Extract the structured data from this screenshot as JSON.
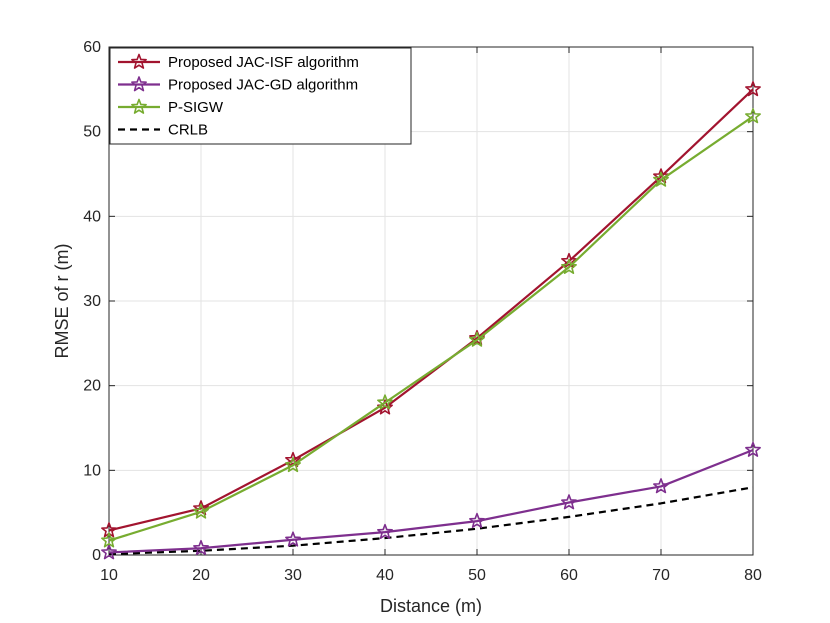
{
  "chart_data": {
    "type": "line",
    "xlabel": "Distance (m)",
    "ylabel": "RMSE of r (m)",
    "xlim": [
      10,
      80
    ],
    "ylim": [
      0,
      60
    ],
    "xticks": [
      "10",
      "20",
      "30",
      "40",
      "50",
      "60",
      "70",
      "80"
    ],
    "yticks": [
      "0",
      "10",
      "20",
      "30",
      "40",
      "50",
      "60"
    ],
    "grid": true,
    "legend_position": "top-left",
    "x": [
      10,
      20,
      30,
      40,
      50,
      60,
      70,
      80
    ],
    "series": [
      {
        "name": "Proposed JAC-ISF algorithm",
        "values": [
          2.9,
          5.5,
          11.2,
          17.4,
          25.6,
          34.7,
          44.7,
          55.0
        ],
        "color": "#A2142F",
        "style": "solid",
        "marker": "star-icon"
      },
      {
        "name": "Proposed JAC-GD algorithm",
        "values": [
          0.3,
          0.8,
          1.8,
          2.7,
          4.0,
          6.2,
          8.1,
          12.4
        ],
        "color": "#7E2F8E",
        "style": "solid",
        "marker": "star-icon"
      },
      {
        "name": "P-SIGW",
        "values": [
          1.7,
          5.1,
          10.6,
          18.0,
          25.4,
          34.0,
          44.3,
          51.8
        ],
        "color": "#77AC30",
        "style": "solid",
        "marker": "star-icon"
      },
      {
        "name": "CRLB",
        "values": [
          0.1,
          0.5,
          1.1,
          2.0,
          3.1,
          4.5,
          6.1,
          8.0
        ],
        "color": "#000000",
        "style": "dashed",
        "marker": ""
      }
    ]
  }
}
